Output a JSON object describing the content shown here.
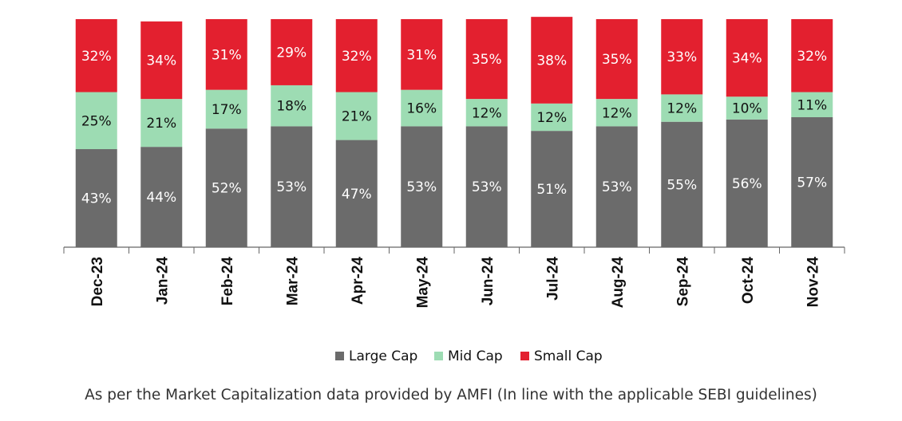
{
  "chart_data": {
    "type": "bar",
    "stacked": true,
    "categories": [
      "Dec-23",
      "Jan-24",
      "Feb-24",
      "Mar-24",
      "Apr-24",
      "May-24",
      "Jun-24",
      "Jul-24",
      "Aug-24",
      "Sep-24",
      "Oct-24",
      "Nov-24"
    ],
    "series": [
      {
        "name": "Large Cap",
        "color": "#6b6b6b",
        "label_color": "#ffffff",
        "values": [
          43,
          44,
          52,
          53,
          47,
          53,
          53,
          51,
          53,
          55,
          56,
          57
        ]
      },
      {
        "name": "Mid Cap",
        "color": "#9ddcb3",
        "label_color": "#111111",
        "values": [
          25,
          21,
          17,
          18,
          21,
          16,
          12,
          12,
          12,
          12,
          10,
          11
        ]
      },
      {
        "name": "Small Cap",
        "color": "#e3202f",
        "label_color": "#ffffff",
        "values": [
          32,
          34,
          31,
          29,
          32,
          31,
          35,
          38,
          35,
          33,
          34,
          32
        ]
      }
    ],
    "value_suffix": "%",
    "ylim": [
      0,
      100
    ],
    "grid": false,
    "legend_position": "bottom-center"
  },
  "footnote": "As per the Market Capitalization data provided by AMFI (In line with the applicable SEBI guidelines)"
}
